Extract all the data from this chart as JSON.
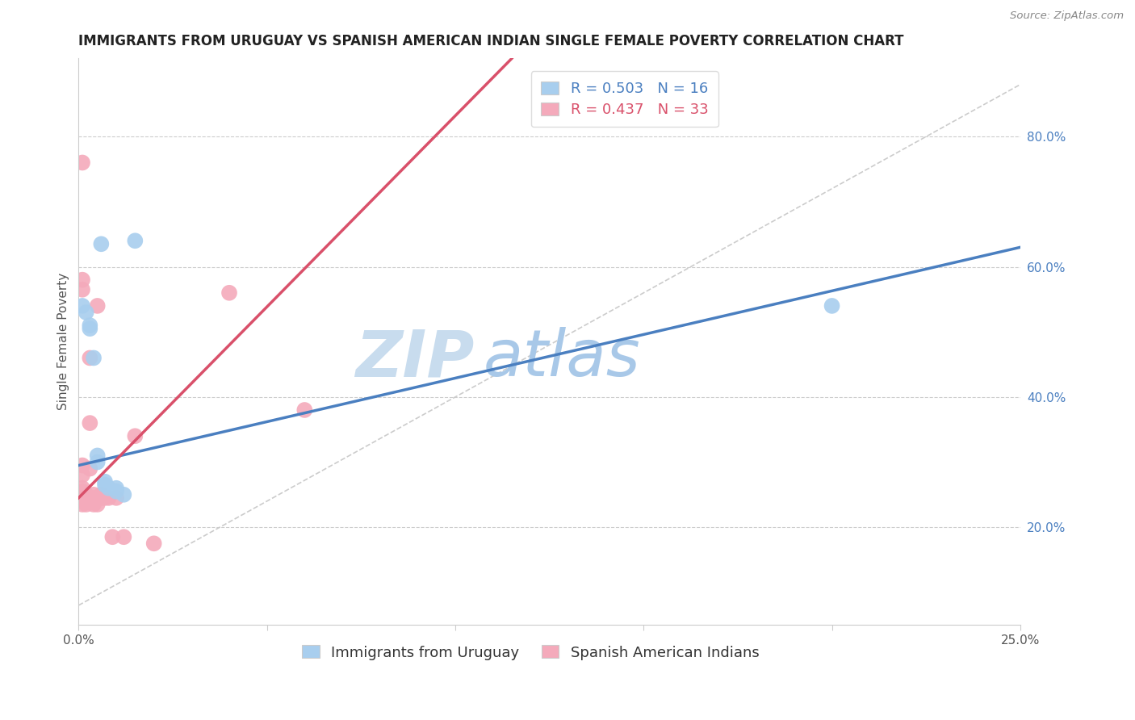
{
  "title": "IMMIGRANTS FROM URUGUAY VS SPANISH AMERICAN INDIAN SINGLE FEMALE POVERTY CORRELATION CHART",
  "source": "Source: ZipAtlas.com",
  "ylabel": "Single Female Poverty",
  "xlim": [
    0.0,
    0.25
  ],
  "ylim": [
    0.05,
    0.92
  ],
  "yticks": [
    0.2,
    0.4,
    0.6,
    0.8
  ],
  "ytick_labels": [
    "20.0%",
    "40.0%",
    "60.0%",
    "80.0%"
  ],
  "xticks": [
    0.0,
    0.05,
    0.1,
    0.15,
    0.2,
    0.25
  ],
  "xtick_labels": [
    "0.0%",
    "",
    "",
    "",
    "",
    "25.0%"
  ],
  "blue_r": 0.503,
  "blue_n": 16,
  "pink_r": 0.437,
  "pink_n": 33,
  "blue_color": "#A8CEEE",
  "pink_color": "#F4AABB",
  "blue_line_color": "#4A7FC0",
  "pink_line_color": "#D9506A",
  "legend_label_blue": "Immigrants from Uruguay",
  "legend_label_pink": "Spanish American Indians",
  "blue_points": [
    [
      0.001,
      0.54
    ],
    [
      0.002,
      0.53
    ],
    [
      0.003,
      0.51
    ],
    [
      0.003,
      0.505
    ],
    [
      0.004,
      0.46
    ],
    [
      0.005,
      0.3
    ],
    [
      0.005,
      0.31
    ],
    [
      0.006,
      0.635
    ],
    [
      0.007,
      0.27
    ],
    [
      0.007,
      0.265
    ],
    [
      0.008,
      0.26
    ],
    [
      0.01,
      0.26
    ],
    [
      0.01,
      0.255
    ],
    [
      0.012,
      0.25
    ],
    [
      0.015,
      0.64
    ],
    [
      0.2,
      0.54
    ]
  ],
  "pink_points": [
    [
      0.001,
      0.76
    ],
    [
      0.001,
      0.58
    ],
    [
      0.001,
      0.565
    ],
    [
      0.001,
      0.295
    ],
    [
      0.001,
      0.28
    ],
    [
      0.001,
      0.26
    ],
    [
      0.001,
      0.255
    ],
    [
      0.001,
      0.25
    ],
    [
      0.001,
      0.24
    ],
    [
      0.001,
      0.235
    ],
    [
      0.002,
      0.25
    ],
    [
      0.002,
      0.245
    ],
    [
      0.002,
      0.24
    ],
    [
      0.002,
      0.235
    ],
    [
      0.003,
      0.46
    ],
    [
      0.003,
      0.36
    ],
    [
      0.003,
      0.29
    ],
    [
      0.004,
      0.25
    ],
    [
      0.004,
      0.245
    ],
    [
      0.004,
      0.235
    ],
    [
      0.005,
      0.54
    ],
    [
      0.005,
      0.235
    ],
    [
      0.006,
      0.25
    ],
    [
      0.006,
      0.245
    ],
    [
      0.007,
      0.245
    ],
    [
      0.008,
      0.245
    ],
    [
      0.009,
      0.185
    ],
    [
      0.01,
      0.245
    ],
    [
      0.012,
      0.185
    ],
    [
      0.015,
      0.34
    ],
    [
      0.02,
      0.175
    ],
    [
      0.04,
      0.56
    ],
    [
      0.06,
      0.38
    ]
  ],
  "blue_trendline_x": [
    0.0,
    0.25
  ],
  "blue_trendline_y": [
    0.295,
    0.63
  ],
  "pink_trendline_x": [
    0.0,
    0.115
  ],
  "pink_trendline_y": [
    0.245,
    0.92
  ],
  "ref_line_x": [
    0.0,
    0.25
  ],
  "ref_line_y": [
    0.08,
    0.88
  ],
  "background_color": "#FFFFFF",
  "grid_color": "#CCCCCC",
  "title_fontsize": 12,
  "label_fontsize": 11,
  "tick_fontsize": 11,
  "legend_fontsize": 13,
  "watermark_zip_color": "#C8DCEE",
  "watermark_atlas_color": "#A8C8E8"
}
